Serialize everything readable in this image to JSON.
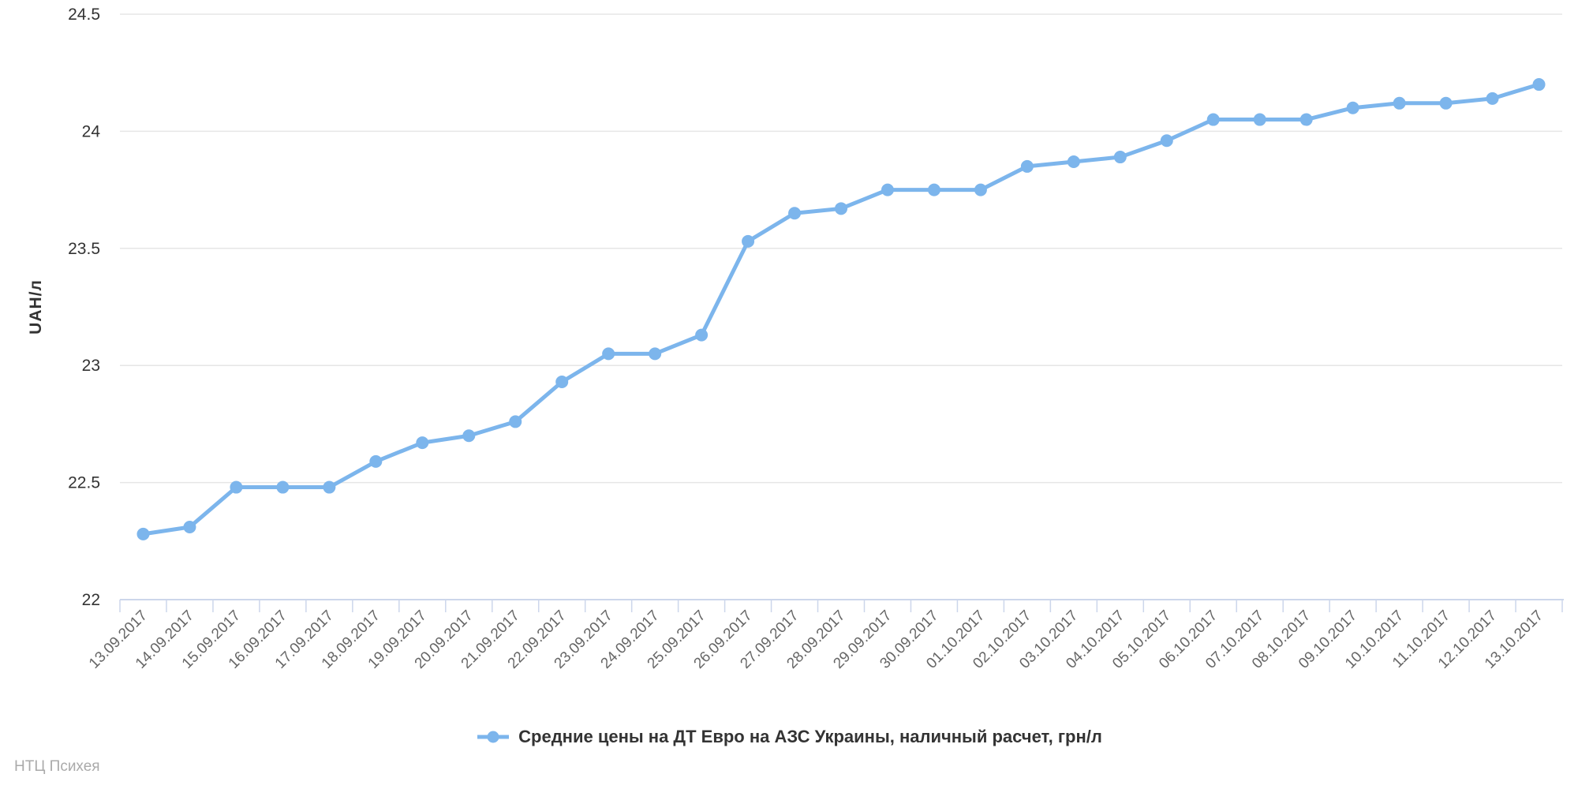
{
  "watermark": "НТЦ Психея",
  "colors": {
    "series": "#7cb5ec",
    "grid": "#e6e6e6",
    "axis": "#ccd6eb",
    "x_labels": "#666666",
    "y_labels": "#333333",
    "y_title": "#333333",
    "legend_text": "#333333",
    "watermark": "#aaaaaa",
    "background": "#ffffff"
  },
  "chart_data": {
    "type": "line",
    "title": "",
    "xlabel": "",
    "ylabel": "UAH/л",
    "ylim": [
      22,
      24.5
    ],
    "yticks": [
      22,
      22.5,
      23,
      23.5,
      24,
      24.5
    ],
    "grid": true,
    "legend_position": "bottom",
    "marker_style": "filled-circle",
    "categories": [
      "13.09.2017",
      "14.09.2017",
      "15.09.2017",
      "16.09.2017",
      "17.09.2017",
      "18.09.2017",
      "19.09.2017",
      "20.09.2017",
      "21.09.2017",
      "22.09.2017",
      "23.09.2017",
      "24.09.2017",
      "25.09.2017",
      "26.09.2017",
      "27.09.2017",
      "28.09.2017",
      "29.09.2017",
      "30.09.2017",
      "01.10.2017",
      "02.10.2017",
      "03.10.2017",
      "04.10.2017",
      "05.10.2017",
      "06.10.2017",
      "07.10.2017",
      "08.10.2017",
      "09.10.2017",
      "10.10.2017",
      "11.10.2017",
      "12.10.2017",
      "13.10.2017"
    ],
    "series": [
      {
        "name": "Средние цены на ДТ Евро на АЗС Украины, наличный расчет, грн/л",
        "values": [
          22.28,
          22.31,
          22.48,
          22.48,
          22.48,
          22.59,
          22.67,
          22.7,
          22.76,
          22.93,
          23.05,
          23.05,
          23.13,
          23.53,
          23.65,
          23.67,
          23.75,
          23.75,
          23.75,
          23.85,
          23.87,
          23.89,
          23.96,
          24.05,
          24.05,
          24.05,
          24.1,
          24.12,
          24.12,
          24.14,
          24.2
        ]
      }
    ]
  }
}
